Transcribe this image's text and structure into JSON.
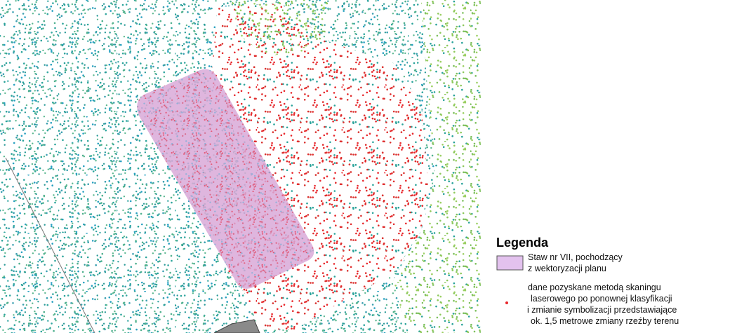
{
  "legend": {
    "title": "Legenda",
    "items": [
      {
        "lines": [
          "Staw nr VII, pochodzący",
          " z wektoryzacji planu"
        ]
      },
      {
        "lines": [
          "dane pozyskane metodą skaningu",
          "laserowego po ponownej klasyfikacji",
          "i zmianie symbolizacji przedstawiające",
          "ok. 1,5 metrowe zmiany rzeźby terenu"
        ]
      }
    ]
  }
}
